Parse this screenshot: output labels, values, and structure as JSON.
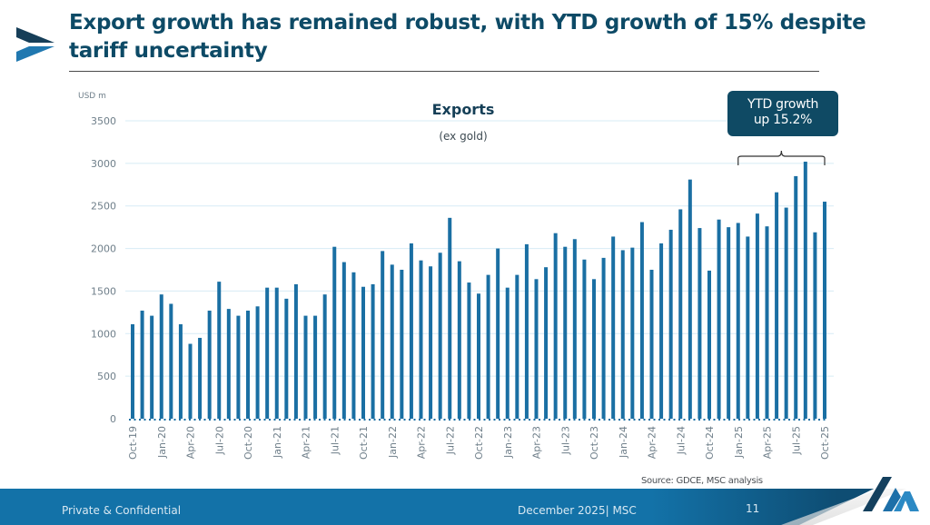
{
  "slide": {
    "title": "Export growth has remained robust, with YTD growth of 15% despite tariff uncertainty",
    "callout_line1": "YTD growth",
    "callout_line2": "up 15.2%",
    "source": "Source: GDCE, MSC analysis",
    "footer_left": "Private & Confidential",
    "footer_center": "December 2025| MSC",
    "page_number": "11",
    "colors": {
      "bar": "#1a6fa3",
      "title": "#0d4a66",
      "callout_bg": "#0f4a64",
      "footer": "#1372a8",
      "gridline": "#d7ecf5"
    }
  },
  "chart_data": {
    "type": "bar",
    "title": "Exports",
    "subtitle": "(ex gold)",
    "ylabel": "USD m",
    "xlabel": "",
    "ylim": [
      0,
      3500
    ],
    "yticks": [
      0,
      500,
      1000,
      1500,
      2000,
      2500,
      3000,
      3500
    ],
    "grid": true,
    "legend": "none",
    "categories": [
      "Oct-19",
      "Nov-19",
      "Dec-19",
      "Jan-20",
      "Feb-20",
      "Mar-20",
      "Apr-20",
      "May-20",
      "Jun-20",
      "Jul-20",
      "Aug-20",
      "Sep-20",
      "Oct-20",
      "Nov-20",
      "Dec-20",
      "Jan-21",
      "Feb-21",
      "Mar-21",
      "Apr-21",
      "May-21",
      "Jun-21",
      "Jul-21",
      "Aug-21",
      "Sep-21",
      "Oct-21",
      "Nov-21",
      "Dec-21",
      "Jan-22",
      "Feb-22",
      "Mar-22",
      "Apr-22",
      "May-22",
      "Jun-22",
      "Jul-22",
      "Aug-22",
      "Sep-22",
      "Oct-22",
      "Nov-22",
      "Dec-22",
      "Jan-23",
      "Feb-23",
      "Mar-23",
      "Apr-23",
      "May-23",
      "Jun-23",
      "Jul-23",
      "Aug-23",
      "Sep-23",
      "Oct-23",
      "Nov-23",
      "Dec-23",
      "Jan-24",
      "Feb-24",
      "Mar-24",
      "Apr-24",
      "May-24",
      "Jun-24",
      "Jul-24",
      "Aug-24",
      "Sep-24",
      "Oct-24",
      "Nov-24",
      "Dec-24",
      "Jan-25",
      "Feb-25",
      "Mar-25",
      "Apr-25",
      "May-25",
      "Jun-25",
      "Jul-25",
      "Aug-25",
      "Sep-25",
      "Oct-25"
    ],
    "tick_labels": [
      "Oct-19",
      "Jan-20",
      "Apr-20",
      "Jul-20",
      "Oct-20",
      "Jan-21",
      "Apr-21",
      "Jul-21",
      "Oct-21",
      "Jan-22",
      "Apr-22",
      "Jul-22",
      "Oct-22",
      "Jan-23",
      "Apr-23",
      "Jul-23",
      "Oct-23",
      "Jan-24",
      "Apr-24",
      "Jul-24",
      "Oct-24",
      "Jan-25",
      "Apr-25",
      "Jul-25",
      "Oct-25"
    ],
    "values": [
      1110,
      1270,
      1210,
      1460,
      1350,
      1110,
      880,
      950,
      1270,
      1610,
      1290,
      1210,
      1270,
      1320,
      1540,
      1540,
      1410,
      1580,
      1210,
      1210,
      1460,
      2020,
      1840,
      1720,
      1550,
      1580,
      1970,
      1810,
      1750,
      2060,
      1860,
      1790,
      1950,
      2360,
      1850,
      1600,
      1470,
      1690,
      2000,
      1540,
      1690,
      2050,
      1640,
      1780,
      2180,
      2020,
      2110,
      1870,
      1640,
      1890,
      2140,
      1980,
      2010,
      2310,
      1750,
      2060,
      2220,
      2460,
      2810,
      2240,
      1740,
      2340,
      2250,
      2300,
      2140,
      2410,
      2260,
      2660,
      2480,
      2850,
      3020,
      2190,
      2550
    ],
    "annotations": [
      {
        "text": "YTD growth up 15.2%",
        "range": [
          "Jan-25",
          "Oct-25"
        ],
        "type": "bracket"
      }
    ]
  }
}
